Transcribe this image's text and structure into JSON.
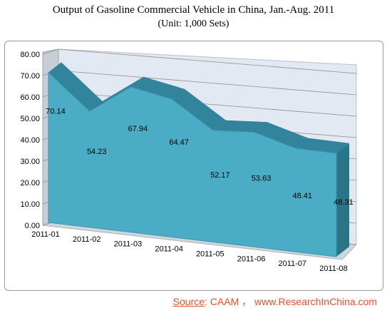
{
  "title": "Output of Gasoline Commercial Vehicle in China, Jan.-Aug. 2011",
  "subtitle": "(Unit: 1,000 Sets)",
  "source": {
    "label": "Source",
    "text": ":   CAAM  ，  www.ResearchInChina.com"
  },
  "colors": {
    "area_front": "#4bacc6",
    "area_top": "#31849b",
    "area_side": "#2a7487",
    "wall": "#e3e9f3",
    "floor": "#cfd6de",
    "grid": "#8c8c8c",
    "source": "#e8502a"
  },
  "chart_data": {
    "type": "area",
    "style": "3d",
    "categories": [
      "2011-01",
      "2011-02",
      "2011-03",
      "2011-04",
      "2011-05",
      "2011-06",
      "2011-07",
      "2011-08"
    ],
    "series": [
      {
        "values": [
          70.14,
          54.23,
          67.94,
          64.47,
          52.17,
          53.63,
          48.41,
          48.31
        ]
      }
    ],
    "y_ticks": [
      "0.00",
      "10.00",
      "20.00",
      "30.00",
      "40.00",
      "50.00",
      "60.00",
      "70.00",
      "80.00"
    ],
    "ylim": [
      0,
      80
    ],
    "grid": true,
    "legend": "none",
    "data_labels": [
      "70.14",
      "54.23",
      "67.94",
      "64.47",
      "52.17",
      "53.63",
      "48.41",
      "48.31"
    ]
  }
}
